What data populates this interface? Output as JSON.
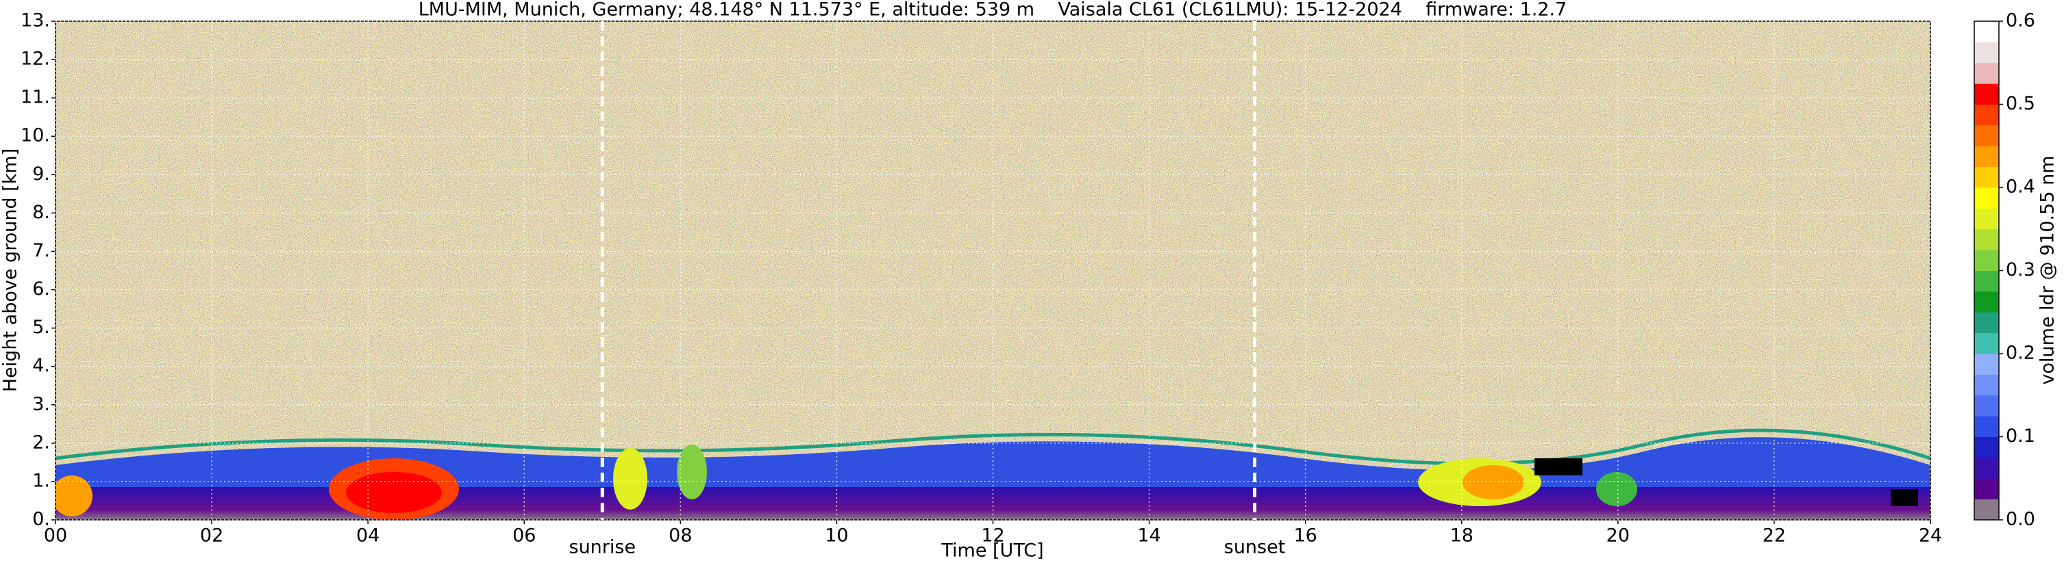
{
  "chart_data": {
    "type": "heatmap",
    "title": "LMU-MIM, Munich, Germany; 48.148° N 11.573° E, altitude: 539 m    Vaisala CL61 (CL61LMU): 15-12-2024    firmware: 1.2.7",
    "xlabel": "Time [UTC]",
    "ylabel": "Height above ground [km]",
    "xlim": [
      0,
      24
    ],
    "xticks": [
      {
        "value": 0,
        "label": "00"
      },
      {
        "value": 2,
        "label": "02"
      },
      {
        "value": 4,
        "label": "04"
      },
      {
        "value": 6,
        "label": "06"
      },
      {
        "value": 8,
        "label": "08"
      },
      10,
      12,
      14,
      16,
      18,
      20,
      22,
      24
    ],
    "ylim": [
      0,
      13
    ],
    "yticks": [
      {
        "value": 0,
        "label": "0."
      },
      {
        "value": 1,
        "label": "1."
      },
      {
        "value": 2,
        "label": "2."
      },
      {
        "value": 3,
        "label": "3."
      },
      {
        "value": 4,
        "label": "4."
      },
      {
        "value": 5,
        "label": "5."
      },
      {
        "value": 6,
        "label": "6."
      },
      {
        "value": 7,
        "label": "7."
      },
      {
        "value": 8,
        "label": "8."
      },
      {
        "value": 9,
        "label": "9."
      },
      {
        "value": 10,
        "label": "10."
      },
      {
        "value": 11,
        "label": "11."
      },
      {
        "value": 12,
        "label": "12."
      },
      {
        "value": 13,
        "label": "13."
      }
    ],
    "grid": true,
    "annotations": [
      {
        "text": "sunrise",
        "x": 7.0
      },
      {
        "text": "sunset",
        "x": 15.35
      }
    ],
    "colorbar": {
      "label": "volume ldr @ 910.55 nm",
      "clim": [
        0,
        0.6
      ],
      "ticks": [
        {
          "value": 0,
          "label": "0.0"
        },
        0.1,
        0.2,
        0.3,
        0.4,
        0.5,
        0.6
      ],
      "colors": [
        "#8a7a8a",
        "#5a0090",
        "#3a10b0",
        "#2020c8",
        "#2f4de8",
        "#5070f4",
        "#7090fa",
        "#90b0ff",
        "#40c0b0",
        "#20a080",
        "#109a20",
        "#40b840",
        "#80d040",
        "#b0e030",
        "#e0f020",
        "#ffff00",
        "#ffd000",
        "#ffa000",
        "#ff7000",
        "#ff4000",
        "#ff0000",
        "#eab8b8",
        "#ece0e0",
        "#ffffff"
      ]
    }
  }
}
